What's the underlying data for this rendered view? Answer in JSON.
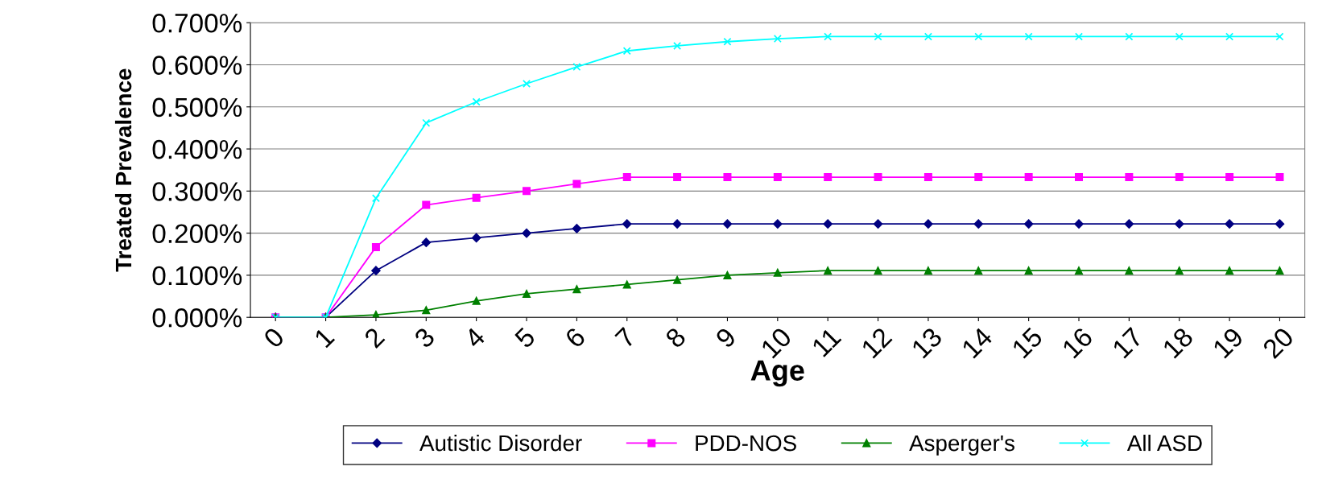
{
  "chart_data": {
    "type": "line",
    "xlabel": "Age",
    "ylabel": "Treated Prevalence",
    "categories": [
      "0",
      "1",
      "2",
      "3",
      "4",
      "5",
      "6",
      "7",
      "8",
      "9",
      "10",
      "11",
      "12",
      "13",
      "14",
      "15",
      "16",
      "17",
      "18",
      "19",
      "20"
    ],
    "series": [
      {
        "name": "Autistic Disorder",
        "color": "#000080",
        "marker": "diamond",
        "values": [
          0,
          0,
          0.111,
          0.178,
          0.189,
          0.2,
          0.211,
          0.222,
          0.222,
          0.222,
          0.222,
          0.222,
          0.222,
          0.222,
          0.222,
          0.222,
          0.222,
          0.222,
          0.222,
          0.222,
          0.222
        ]
      },
      {
        "name": "PDD-NOS",
        "color": "#ff00ff",
        "marker": "square",
        "values": [
          0,
          0,
          0.167,
          0.267,
          0.284,
          0.3,
          0.317,
          0.333,
          0.333,
          0.333,
          0.333,
          0.333,
          0.333,
          0.333,
          0.333,
          0.333,
          0.333,
          0.333,
          0.333,
          0.333,
          0.333
        ]
      },
      {
        "name": "Asperger's",
        "color": "#008000",
        "marker": "triangle",
        "values": [
          0,
          0,
          0.006,
          0.017,
          0.039,
          0.056,
          0.067,
          0.078,
          0.089,
          0.1,
          0.106,
          0.111,
          0.111,
          0.111,
          0.111,
          0.111,
          0.111,
          0.111,
          0.111,
          0.111,
          0.111
        ]
      },
      {
        "name": "All ASD",
        "color": "#00ffff",
        "marker": "cross",
        "values": [
          0,
          0,
          0.283,
          0.462,
          0.512,
          0.555,
          0.595,
          0.633,
          0.645,
          0.655,
          0.662,
          0.667,
          0.667,
          0.667,
          0.667,
          0.667,
          0.667,
          0.667,
          0.667,
          0.667,
          0.667
        ]
      }
    ],
    "ylim": [
      0,
      0.7
    ],
    "yticks": [
      {
        "value": 0,
        "label": "0.000%"
      },
      {
        "value": 0.1,
        "label": "0.100%"
      },
      {
        "value": 0.2,
        "label": "0.200%"
      },
      {
        "value": 0.3,
        "label": "0.300%"
      },
      {
        "value": 0.4,
        "label": "0.400%"
      },
      {
        "value": 0.5,
        "label": "0.500%"
      },
      {
        "value": 0.6,
        "label": "0.600%"
      },
      {
        "value": 0.7,
        "label": "0.700%"
      }
    ],
    "grid": "y",
    "legend": "bottom",
    "line_style": "solid"
  }
}
